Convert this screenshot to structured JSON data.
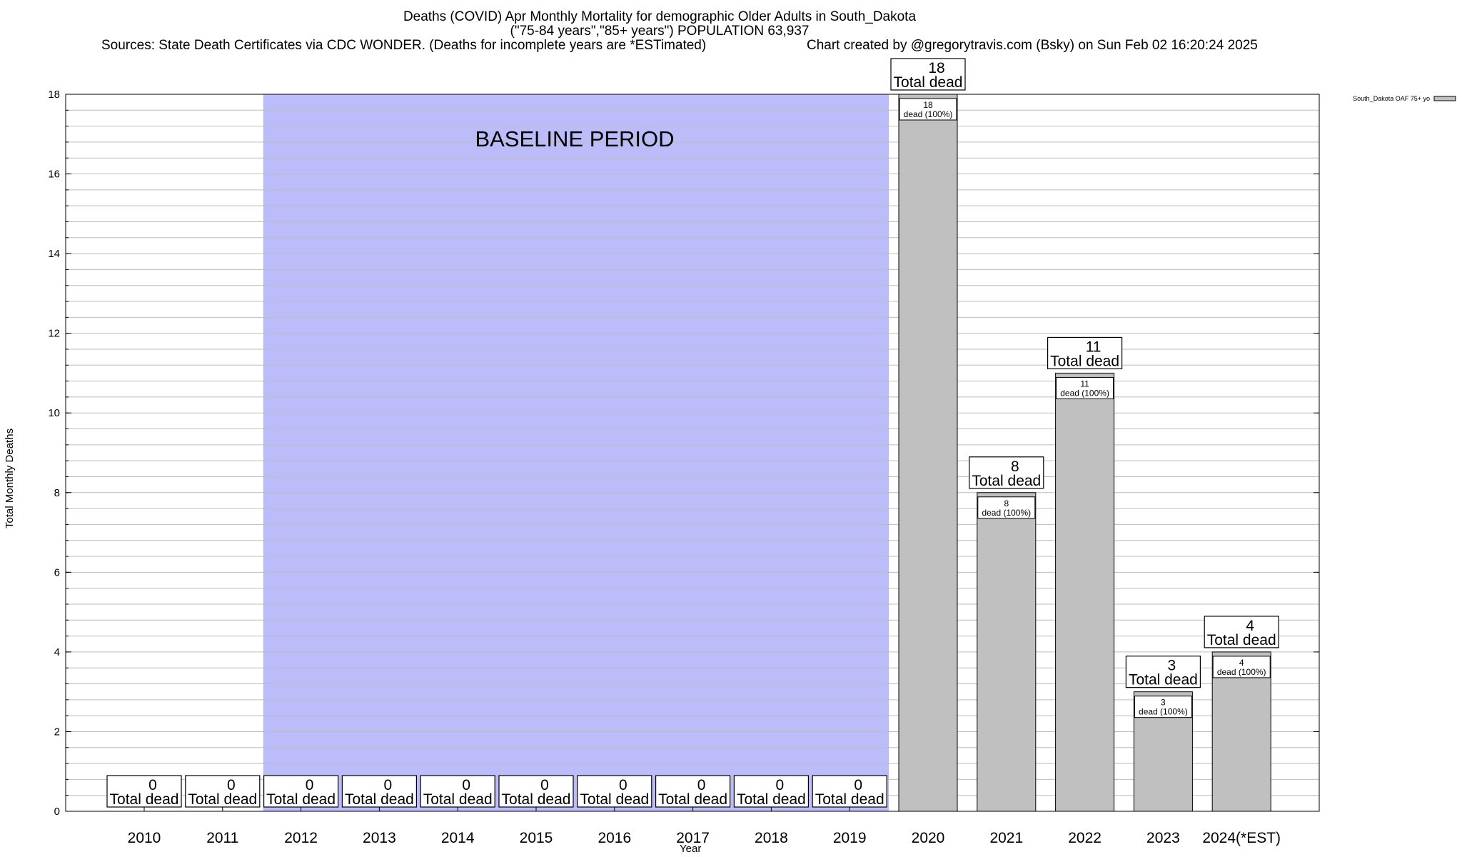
{
  "titles": {
    "line1": "Deaths (COVID) Apr Monthly Mortality for demographic Older Adults in South_Dakota",
    "line2": "(\"75-84 years\",\"85+ years\") POPULATION 63,937",
    "sources": "Sources: State Death Certificates via CDC WONDER. (Deaths for incomplete years are *ESTimated)",
    "created": "Chart created by @gregorytravis.com (Bsky) on Sun Feb 02 16:20:24 2025"
  },
  "colors": {
    "baseline": "#bcbcfa",
    "bar": "#c0c0c0",
    "grid": "#bdbdbd"
  },
  "chart_data": {
    "type": "bar",
    "title": "Deaths (COVID) Apr Monthly Mortality for demographic Older Adults in South_Dakota",
    "xlabel": "Year",
    "ylabel": "Total Monthly Deaths",
    "ylim": [
      0,
      18
    ],
    "yticks": [
      0,
      2,
      4,
      6,
      8,
      10,
      12,
      14,
      16,
      18
    ],
    "grid": true,
    "legend_position": "top-right",
    "baseline_label": "BASELINE PERIOD",
    "baseline_range": [
      "2012",
      "2019"
    ],
    "categories": [
      "2010",
      "2011",
      "2012",
      "2013",
      "2014",
      "2015",
      "2016",
      "2017",
      "2018",
      "2019",
      "2020",
      "2021",
      "2022",
      "2023",
      "2024(*EST)"
    ],
    "series": [
      {
        "name": "South_Dakota OAF 75+ yo",
        "values": [
          0,
          0,
          0,
          0,
          0,
          0,
          0,
          0,
          0,
          0,
          18,
          8,
          11,
          3,
          4
        ]
      }
    ],
    "total_label": "Total dead",
    "inner_label": "dead (100%)"
  }
}
